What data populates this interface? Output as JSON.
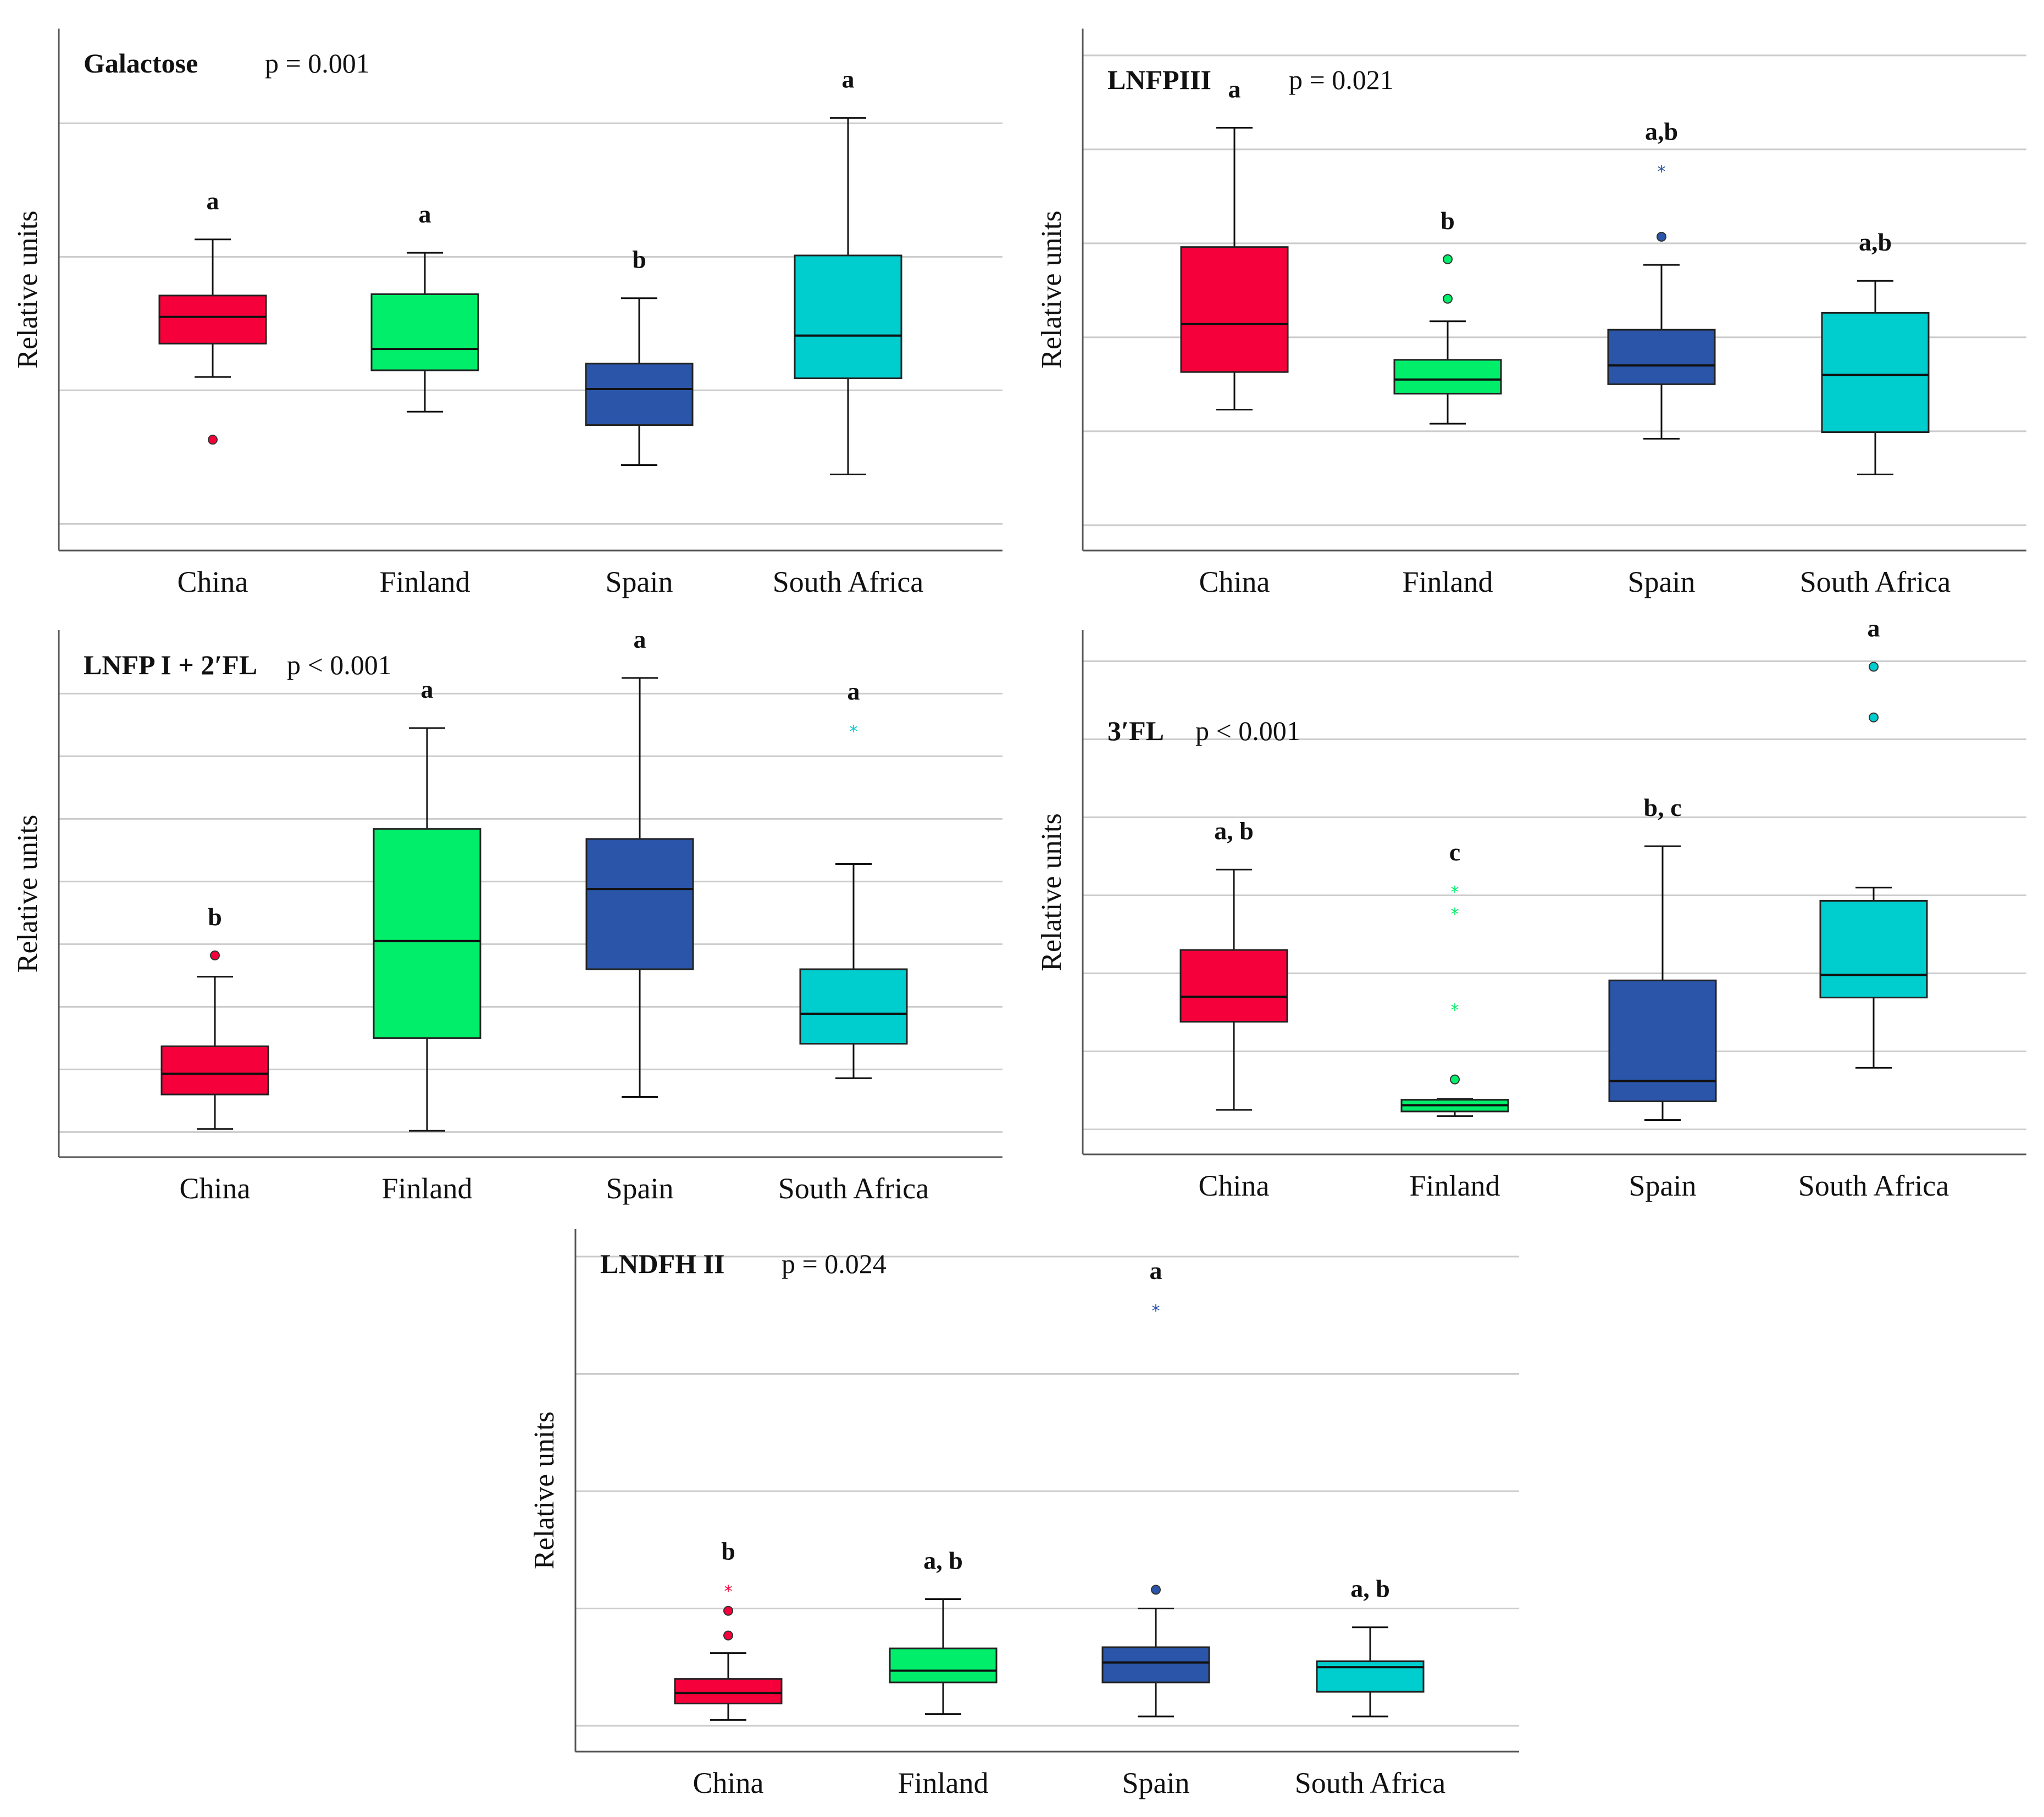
{
  "colors": {
    "China": "#f5003a",
    "Finland": "#00ee6a",
    "Spain": "#2a55a8",
    "South Africa": "#00cdcd",
    "gridline": "#cccccc",
    "axis": "#555555"
  },
  "chart_data": [
    {
      "type": "box",
      "title": "Galactose",
      "p_value": "p = 0.001",
      "ylabel": "Relative units",
      "categories": [
        "China",
        "Finland",
        "Spain",
        "South Africa"
      ],
      "ylim": [
        -0.2,
        3.25
      ],
      "y_gridlines": [
        0,
        1,
        2,
        3
      ],
      "boxes": [
        {
          "category": "China",
          "whisker_low": 1.1,
          "q1": 1.35,
          "median": 1.55,
          "q3": 1.71,
          "whisker_high": 2.13,
          "outliers": [
            0.63
          ],
          "extremes": [],
          "letter": "a"
        },
        {
          "category": "Finland",
          "whisker_low": 0.84,
          "q1": 1.15,
          "median": 1.31,
          "q3": 1.72,
          "whisker_high": 2.03,
          "outliers": [],
          "extremes": [],
          "letter": "a"
        },
        {
          "category": "Spain",
          "whisker_low": 0.44,
          "q1": 0.74,
          "median": 1.01,
          "q3": 1.2,
          "whisker_high": 1.69,
          "outliers": [],
          "extremes": [],
          "letter": "b"
        },
        {
          "category": "South Africa",
          "whisker_low": 0.37,
          "q1": 1.09,
          "median": 1.41,
          "q3": 2.01,
          "whisker_high": 3.04,
          "outliers": [],
          "extremes": [],
          "letter": "a"
        }
      ]
    },
    {
      "type": "box",
      "title": "LNFPIII",
      "p_value": "p = 0.021",
      "ylabel": "Relative units",
      "categories": [
        "China",
        "Finland",
        "Spain",
        "South Africa"
      ],
      "ylim": [
        -0.27,
        5.0
      ],
      "y_gridlines": [
        0,
        1,
        2,
        3,
        4,
        5
      ],
      "boxes": [
        {
          "category": "China",
          "whisker_low": 1.23,
          "q1": 1.63,
          "median": 2.14,
          "q3": 2.96,
          "whisker_high": 4.23,
          "outliers": [],
          "extremes": [],
          "letter": "a"
        },
        {
          "category": "Finland",
          "whisker_low": 1.08,
          "q1": 1.4,
          "median": 1.55,
          "q3": 1.76,
          "whisker_high": 2.17,
          "outliers": [
            2.41,
            2.83
          ],
          "extremes": [],
          "letter": "b"
        },
        {
          "category": "Spain",
          "whisker_low": 0.92,
          "q1": 1.5,
          "median": 1.7,
          "q3": 2.08,
          "whisker_high": 2.77,
          "outliers": [
            3.07
          ],
          "extremes": [
            3.78
          ],
          "letter": "a,b"
        },
        {
          "category": "South Africa",
          "whisker_low": 0.54,
          "q1": 0.99,
          "median": 1.6,
          "q3": 2.26,
          "whisker_high": 2.6,
          "outliers": [],
          "extremes": [],
          "letter": "a,b"
        }
      ]
    },
    {
      "type": "box",
      "title": "LNFP I + 2′FL",
      "p_value": "p < 0.001",
      "ylabel": "Relative units",
      "categories": [
        "China",
        "Finland",
        "Spain",
        "South Africa"
      ],
      "ylim": [
        -0.4,
        7.0
      ],
      "y_gridlines": [
        0,
        1,
        2,
        3,
        4,
        5,
        6,
        7
      ],
      "boxes": [
        {
          "category": "China",
          "whisker_low": 0.05,
          "q1": 0.6,
          "median": 0.93,
          "q3": 1.37,
          "whisker_high": 2.48,
          "outliers": [
            2.82
          ],
          "extremes": [],
          "letter": "b"
        },
        {
          "category": "Finland",
          "whisker_low": 0.02,
          "q1": 1.5,
          "median": 3.05,
          "q3": 4.84,
          "whisker_high": 6.45,
          "outliers": [],
          "extremes": [],
          "letter": "a"
        },
        {
          "category": "Spain",
          "whisker_low": 0.56,
          "q1": 2.6,
          "median": 3.88,
          "q3": 4.68,
          "whisker_high": 7.25,
          "outliers": [],
          "extremes": [],
          "letter": "a"
        },
        {
          "category": "South Africa",
          "whisker_low": 0.86,
          "q1": 1.41,
          "median": 1.89,
          "q3": 2.6,
          "whisker_high": 4.28,
          "outliers": [],
          "extremes": [
            6.42
          ],
          "letter": "a"
        }
      ]
    },
    {
      "type": "box",
      "title": "3′FL",
      "p_value": "p < 0.001",
      "ylabel": "Relative units",
      "categories": [
        "China",
        "Finland",
        "Spain",
        "South Africa"
      ],
      "ylim": [
        -0.32,
        6.0
      ],
      "y_gridlines": [
        0,
        1,
        2,
        3,
        4,
        5,
        6
      ],
      "boxes": [
        {
          "category": "China",
          "whisker_low": 0.25,
          "q1": 1.38,
          "median": 1.7,
          "q3": 2.3,
          "whisker_high": 3.33,
          "outliers": [],
          "extremes": [],
          "letter": "a, b"
        },
        {
          "category": "Finland",
          "whisker_low": 0.17,
          "q1": 0.23,
          "median": 0.31,
          "q3": 0.38,
          "whisker_high": 0.39,
          "outliers": [
            0.64
          ],
          "extremes": [
            1.55,
            2.78,
            3.06
          ],
          "letter": "c"
        },
        {
          "category": "Spain",
          "whisker_low": 0.12,
          "q1": 0.36,
          "median": 0.62,
          "q3": 1.91,
          "whisker_high": 3.63,
          "outliers": [],
          "extremes": [],
          "letter": "b, c"
        },
        {
          "category": "South Africa",
          "whisker_low": 0.79,
          "q1": 1.69,
          "median": 1.98,
          "q3": 2.93,
          "whisker_high": 3.1,
          "outliers": [
            5.28,
            5.93
          ],
          "extremes": [],
          "letter": "a"
        }
      ]
    },
    {
      "type": "box",
      "title": "LNDFH II",
      "p_value": "p = 0.024",
      "ylabel": "Relative units",
      "categories": [
        "China",
        "Finland",
        "Spain",
        "South Africa"
      ],
      "ylim": [
        -0.22,
        4.0
      ],
      "y_gridlines": [
        0,
        1,
        2,
        3,
        4
      ],
      "boxes": [
        {
          "category": "China",
          "whisker_low": 0.05,
          "q1": 0.19,
          "median": 0.28,
          "q3": 0.4,
          "whisker_high": 0.62,
          "outliers": [
            0.77,
            0.98
          ],
          "extremes": [
            1.16
          ],
          "letter": "b"
        },
        {
          "category": "Finland",
          "whisker_low": 0.1,
          "q1": 0.37,
          "median": 0.47,
          "q3": 0.66,
          "whisker_high": 1.08,
          "outliers": [],
          "extremes": [],
          "letter": "a, b"
        },
        {
          "category": "Spain",
          "whisker_low": 0.08,
          "q1": 0.37,
          "median": 0.54,
          "q3": 0.67,
          "whisker_high": 1.0,
          "outliers": [
            1.16
          ],
          "extremes": [
            3.55
          ],
          "letter": "a"
        },
        {
          "category": "South Africa",
          "whisker_low": 0.08,
          "q1": 0.29,
          "median": 0.5,
          "q3": 0.55,
          "whisker_high": 0.84,
          "outliers": [],
          "extremes": [],
          "letter": "a, b"
        }
      ]
    }
  ]
}
